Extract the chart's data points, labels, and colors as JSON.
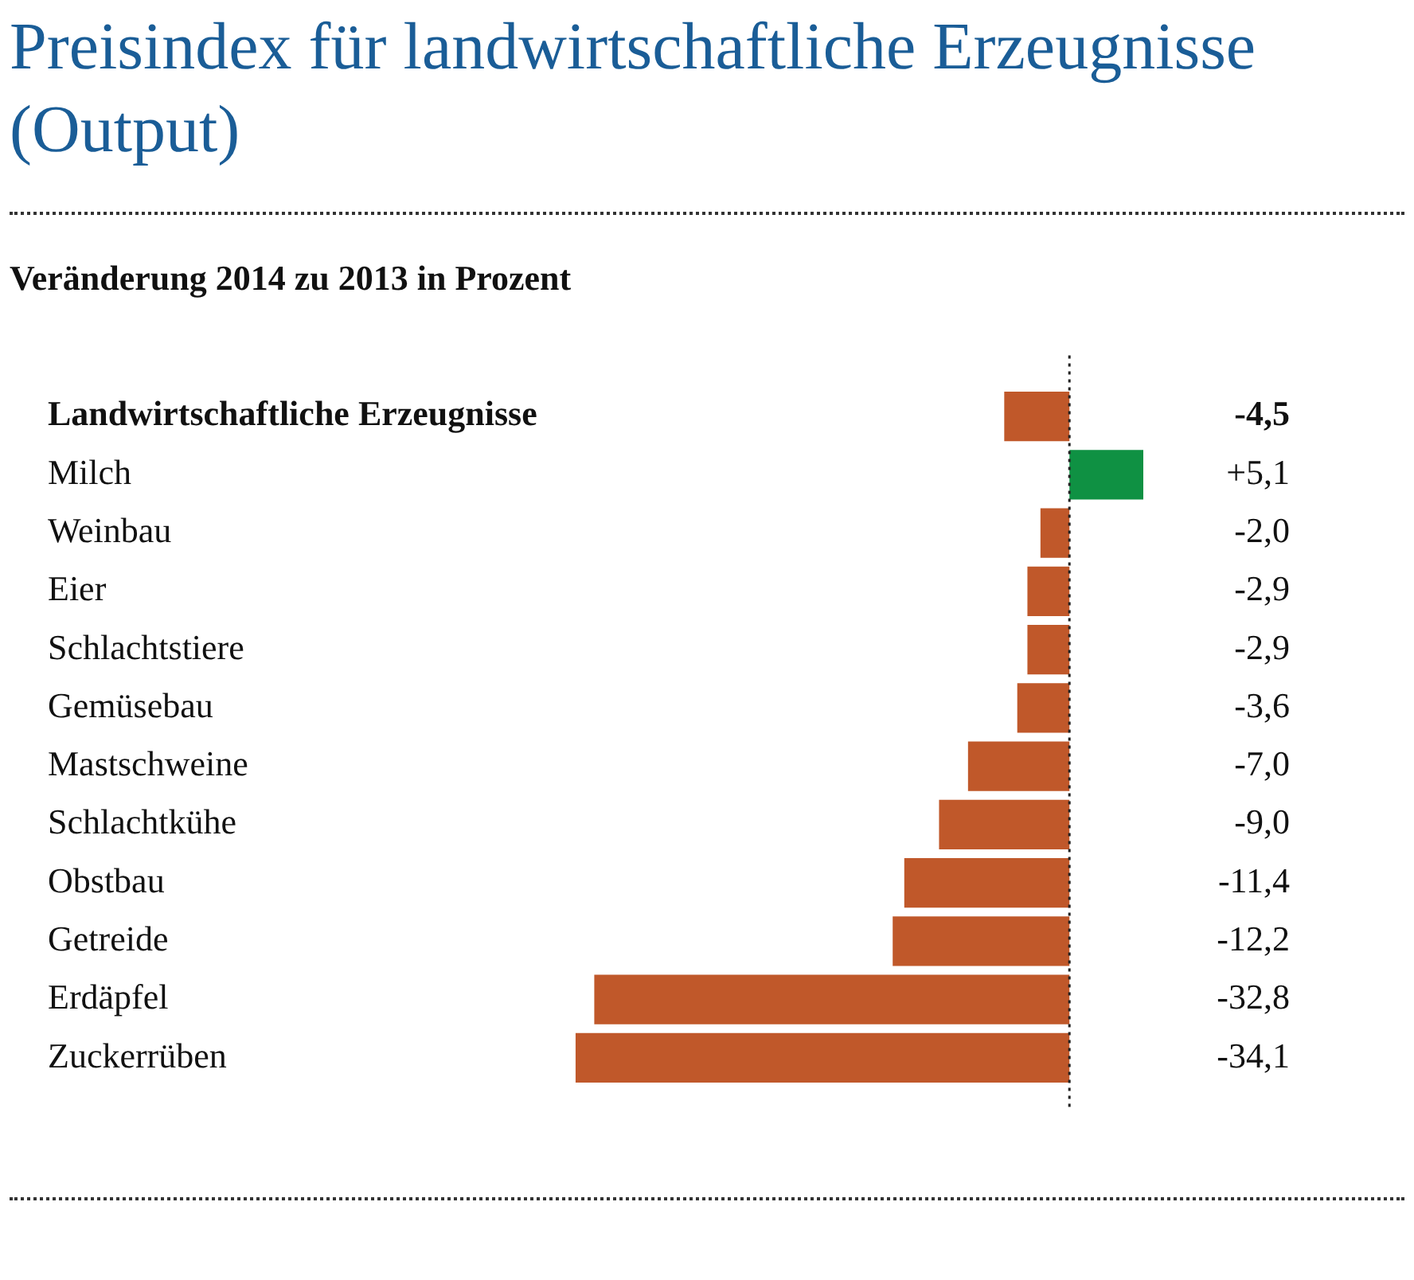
{
  "chart_data": {
    "type": "bar",
    "orientation": "horizontal",
    "title": "Preisindex für landwirtschaftliche Erzeugnisse (Output)",
    "subtitle": "Veränderung 2014 zu 2013 in Prozent",
    "categories": [
      "Landwirtschaftliche Erzeugnisse",
      "Milch",
      "Weinbau",
      "Eier",
      "Schlachtstiere",
      "Gemüsebau",
      "Mastschweine",
      "Schlachtkühe",
      "Obstbau",
      "Getreide",
      "Erdäpfel",
      "Zuckerrüben"
    ],
    "values": [
      -4.5,
      5.1,
      -2.0,
      -2.9,
      -2.9,
      -3.6,
      -7.0,
      -9.0,
      -11.4,
      -12.2,
      -32.8,
      -34.1
    ],
    "colors": [
      "#c0582a",
      "#0f9143",
      "#c0582a",
      "#c0582a",
      "#c0582a",
      "#c0582a",
      "#c0582a",
      "#c0582a",
      "#c0582a",
      "#c0582a",
      "#c0582a",
      "#c0582a"
    ],
    "value_labels": [
      "-4,5",
      "+5,1",
      "-2,0",
      "-2,9",
      "-2,9",
      "-3,6",
      "-7,0",
      "-9,0",
      "-11,4",
      "-12,2",
      "-32,8",
      "-34,1"
    ],
    "ref_lines": [
      {
        "axis": "x",
        "value": 0,
        "line_style": "dotted",
        "color": "#222222"
      }
    ],
    "grid": false,
    "legend": false,
    "tick_labels": "y"
  }
}
